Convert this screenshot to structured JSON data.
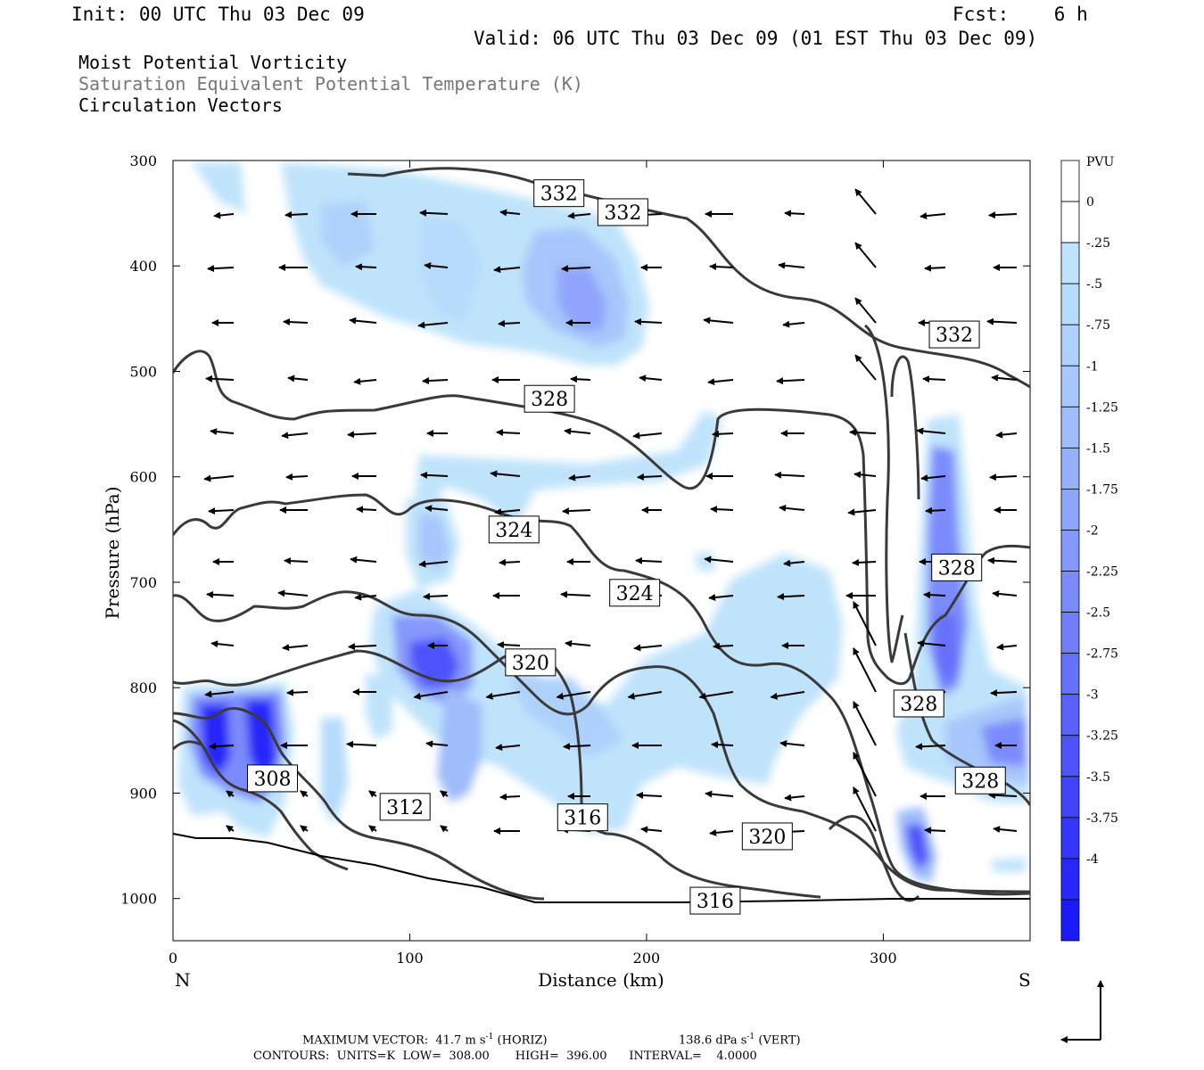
{
  "header": {
    "init": "Init: 00 UTC Thu 03 Dec 09",
    "fcst": "Fcst:    6 h",
    "valid": "Valid: 06 UTC Thu 03 Dec 09 (01 EST Thu 03 Dec 09)"
  },
  "titles": [
    "Moist Potential Vorticity",
    "Saturation Equivalent Potential Temperature (K)",
    "Circulation Vectors"
  ],
  "colors": {
    "title_secondary": "#777777",
    "contour": "#3a3a3a",
    "ground": "#000000"
  },
  "chart_data": {
    "type": "contour",
    "xlabel": "Distance (km)",
    "ylabel": "Pressure (hPa)",
    "xlim": [
      0,
      362
    ],
    "ylim": [
      300,
      1040
    ],
    "x_ticks": [
      0,
      100,
      200,
      300
    ],
    "y_ticks": [
      300,
      400,
      500,
      600,
      700,
      800,
      900,
      1000
    ],
    "left_end_label": "N",
    "right_end_label": "S",
    "colorbar": {
      "unit": "PVU",
      "labels": [
        "0",
        "-.25",
        "-.5",
        "-.75",
        "-1",
        "-1.25",
        "-1.5",
        "-1.75",
        "-2",
        "-2.25",
        "-2.5",
        "-2.75",
        "-3",
        "-3.25",
        "-3.5",
        "-3.75",
        "-4"
      ],
      "colors": [
        "#ffffff",
        "#ffffff",
        "#bfe3fb",
        "#b6dbfb",
        "#aed1fb",
        "#a7c6fb",
        "#9fbcfb",
        "#97b0fb",
        "#8fa4fb",
        "#8598fb",
        "#7b8bfb",
        "#717dfb",
        "#6670fb",
        "#5a62fb",
        "#4e53fb",
        "#4244fb",
        "#3536fb",
        "#2828fb",
        "#1a1afb"
      ]
    },
    "contour_labels": [
      {
        "text": "332",
        "x": 163,
        "p": 331
      },
      {
        "text": "332",
        "x": 190,
        "p": 349
      },
      {
        "text": "332",
        "x": 330,
        "p": 465
      },
      {
        "text": "328",
        "x": 159,
        "p": 526
      },
      {
        "text": "324",
        "x": 144,
        "p": 650
      },
      {
        "text": "324",
        "x": 195,
        "p": 710
      },
      {
        "text": "328",
        "x": 331,
        "p": 686
      },
      {
        "text": "320",
        "x": 151,
        "p": 776
      },
      {
        "text": "328",
        "x": 315,
        "p": 815
      },
      {
        "text": "328",
        "x": 341,
        "p": 888
      },
      {
        "text": "308",
        "x": 42,
        "p": 886
      },
      {
        "text": "312",
        "x": 98,
        "p": 913
      },
      {
        "text": "316",
        "x": 173,
        "p": 923
      },
      {
        "text": "320",
        "x": 251,
        "p": 941
      },
      {
        "text": "316",
        "x": 229,
        "p": 1002
      }
    ],
    "max_vector_label": "MAXIMUM VECTOR:  41.7 m s",
    "horiz_label": "(HORIZ)",
    "vert_value": "138.6 dPa s",
    "vert_label": "(VERT)",
    "superscript": "-1",
    "contours_info": "CONTOURS:  UNITS=K  LOW=  308.00       HIGH=  396.00      INTERVAL=    4.0000"
  }
}
